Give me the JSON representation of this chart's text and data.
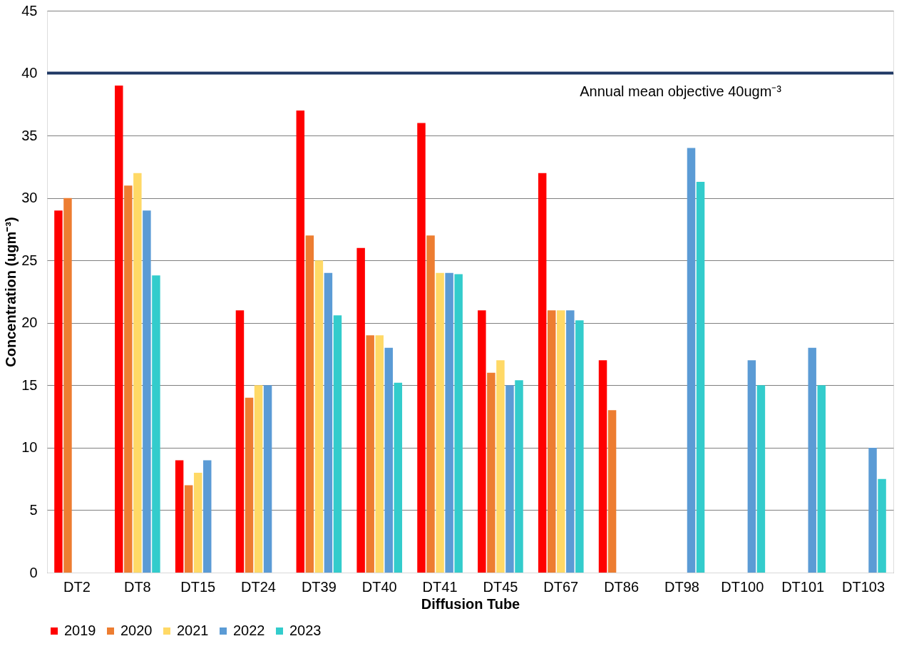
{
  "chart_data": {
    "type": "bar",
    "xlabel": "Diffusion Tube",
    "ylabel": "Concentration (ugm⁻³)",
    "categories": [
      "DT2",
      "DT8",
      "DT15",
      "DT24",
      "DT39",
      "DT40",
      "DT41",
      "DT45",
      "DT67",
      "DT86",
      "DT98",
      "DT100",
      "DT101",
      "DT103"
    ],
    "series": [
      {
        "name": "2019",
        "color": "#ff0000",
        "values": [
          29,
          39,
          9,
          21,
          37,
          26,
          36,
          21,
          32,
          17,
          null,
          null,
          null,
          null
        ]
      },
      {
        "name": "2020",
        "color": "#ed7d31",
        "values": [
          30,
          31,
          7,
          14,
          27,
          19,
          27,
          16,
          21,
          13,
          null,
          null,
          null,
          null
        ]
      },
      {
        "name": "2021",
        "color": "#ffd966",
        "values": [
          null,
          32,
          8,
          15,
          25,
          19,
          24,
          17,
          21,
          null,
          null,
          null,
          null,
          null
        ]
      },
      {
        "name": "2022",
        "color": "#5b9bd5",
        "values": [
          null,
          29,
          9,
          15,
          24,
          18,
          24,
          15,
          21,
          null,
          34,
          17,
          18,
          10
        ]
      },
      {
        "name": "2023",
        "color": "#33cccc",
        "values": [
          null,
          23.8,
          null,
          null,
          20.6,
          15.2,
          23.9,
          15.4,
          20.2,
          null,
          31.3,
          15,
          15,
          7.5
        ]
      }
    ],
    "ylim": [
      0,
      45
    ],
    "yticks": [
      0,
      5,
      10,
      15,
      20,
      25,
      30,
      35,
      40,
      45
    ],
    "ref_lines": [
      {
        "axis": "y",
        "value": 40,
        "label": "Annual mean objective 40ugm⁻³",
        "color": "#1f3864"
      }
    ],
    "grid": "y",
    "legend": "bottom"
  }
}
